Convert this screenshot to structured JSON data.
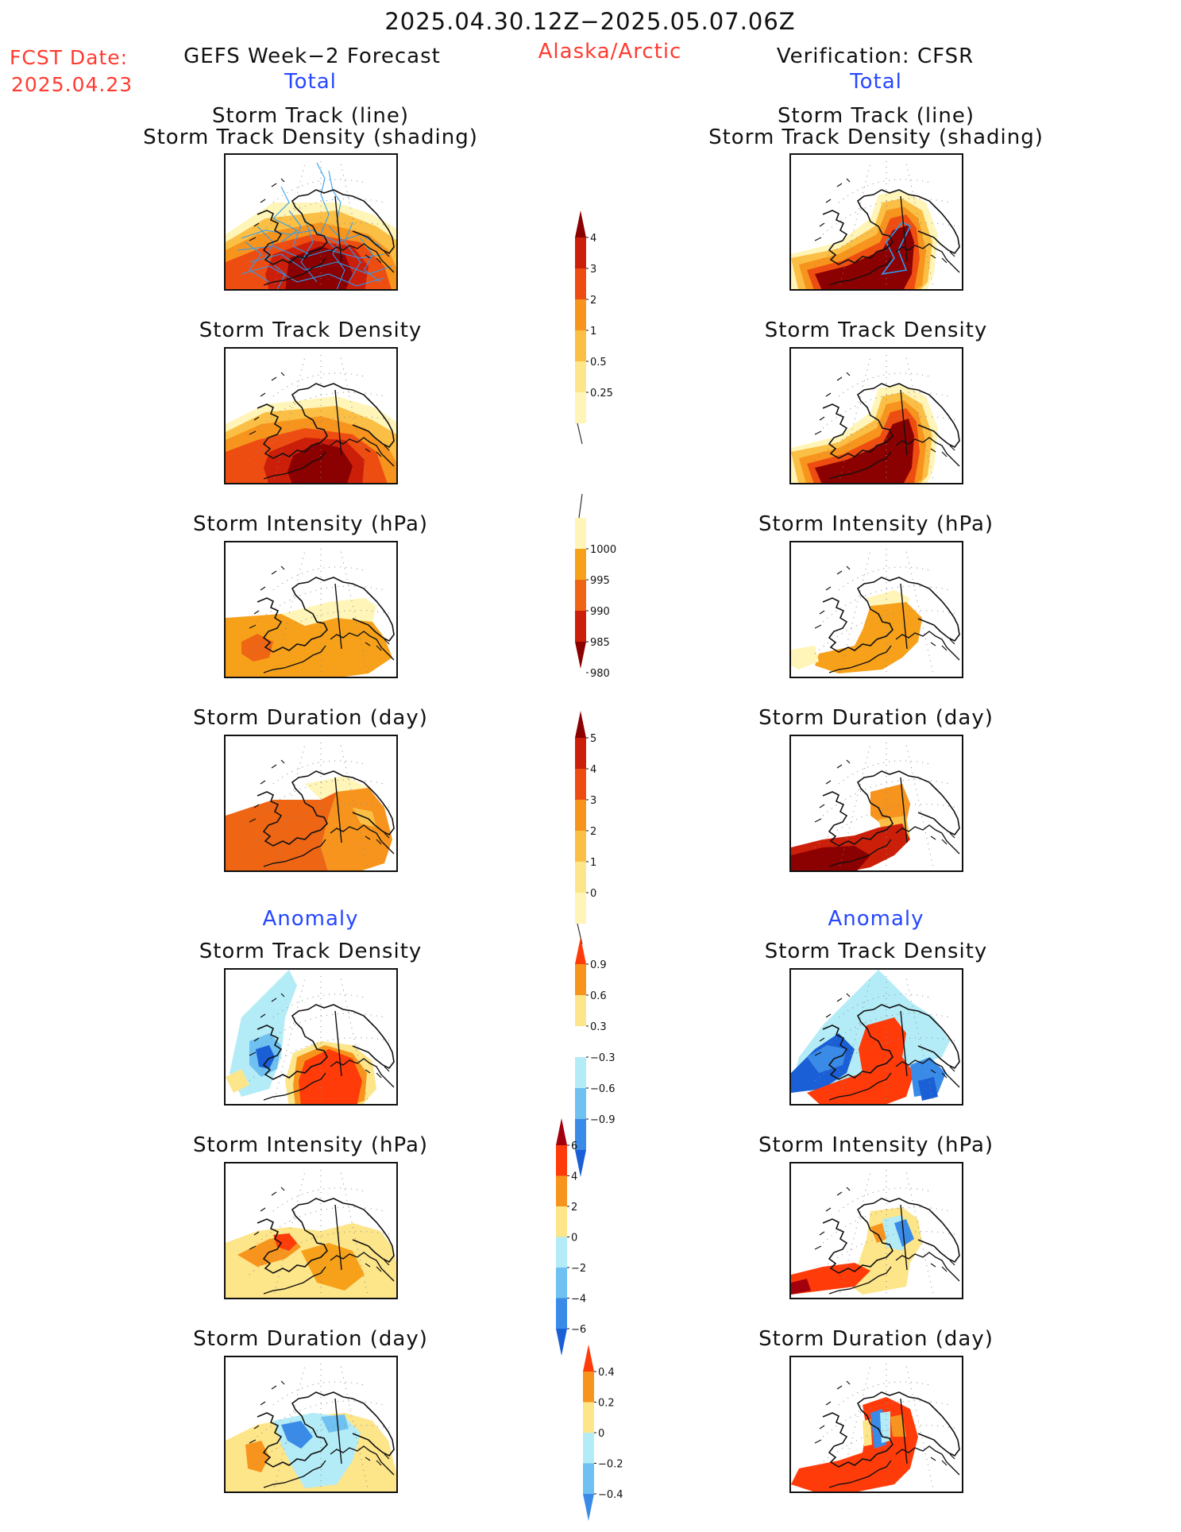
{
  "header": {
    "valid_period": "2025.04.30.12Z−2025.05.07.06Z",
    "fcst_label": "FCST Date:",
    "fcst_date": "2025.04.23",
    "left_title": "GEFS Week−2 Forecast",
    "region": "Alaska/Arctic",
    "right_title": "Verification: CFSR",
    "total_left": "Total",
    "total_right": "Total",
    "anomaly_left": "Anomaly",
    "anomaly_right": "Anomaly"
  },
  "panel_titles": {
    "track_line": "Storm Track (line)",
    "track_shading": "Storm Track Density (shading)",
    "density": "Storm Track Density",
    "intensity": "Storm Intensity (hPa)",
    "duration": "Storm Duration (day)"
  },
  "colorbars": {
    "density_total": {
      "labels": [
        "4",
        "3",
        "2",
        "1",
        "0.5",
        "0.25"
      ],
      "colors": [
        "#8b0000",
        "#cc1f0a",
        "#ee4d12",
        "#f7941d",
        "#fbbf45",
        "#fde58a",
        "#fff5b8"
      ]
    },
    "intensity_total": {
      "labels": [
        "1000",
        "995",
        "990",
        "985",
        "980"
      ],
      "colors": [
        "#fff5b8",
        "#f7a11a",
        "#ee6514",
        "#cc1f0a",
        "#8b0000"
      ]
    },
    "duration_total": {
      "labels": [
        "5",
        "4",
        "3",
        "2",
        "1",
        "0"
      ],
      "colors": [
        "#8b0000",
        "#cc1f0a",
        "#ee4d12",
        "#f7941d",
        "#fbbf45",
        "#fde58a",
        "#fff5b8"
      ]
    },
    "density_anom": {
      "labels": [
        "0.9",
        "0.6",
        "0.3",
        "−0.3",
        "−0.6",
        "−0.9"
      ],
      "colors": [
        "#ff3b0a",
        "#f7941d",
        "#fde58a",
        "#ffffff",
        "#b3ecf7",
        "#6ec1f1",
        "#3a8be8",
        "#1b5fd6"
      ]
    },
    "intensity_anom": {
      "labels": [
        "6",
        "4",
        "2",
        "0",
        "−2",
        "−4",
        "−6"
      ],
      "colors": [
        "#a3000e",
        "#ff3b0a",
        "#f7941d",
        "#fde58a",
        "#b3ecf7",
        "#6ec1f1",
        "#3a8be8",
        "#1b5fd6"
      ]
    },
    "duration_anom": {
      "labels": [
        "0.4",
        "0.2",
        "0",
        "−0.2",
        "−0.4"
      ],
      "colors": [
        "#ff3b0a",
        "#f7941d",
        "#fde58a",
        "#b3ecf7",
        "#6ec1f1",
        "#3a8be8"
      ]
    }
  },
  "legend_colors": {
    "darkred": "#8b0000",
    "red": "#cc1f0a",
    "orange_red": "#ee4d12",
    "orange": "#f7941d",
    "light_orange": "#fbbf45",
    "yellow": "#fde58a",
    "pale_yellow": "#fff5b8",
    "light_blue": "#b3ecf7",
    "sky_blue": "#6ec1f1",
    "blue": "#3a8be8",
    "dark_blue": "#1b5fd6",
    "track_line": "#2a9df4"
  }
}
